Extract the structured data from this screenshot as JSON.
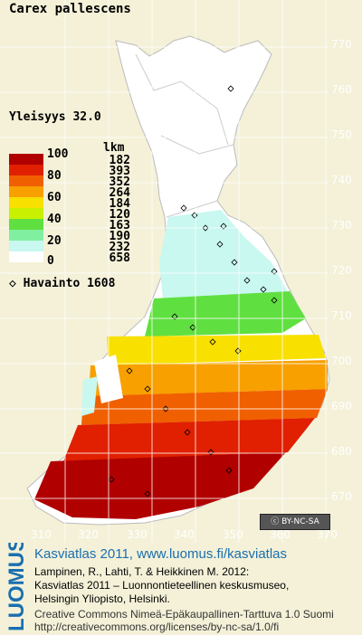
{
  "title": "Carex pallescens",
  "frequency_label": "Yleisyys  32.0",
  "legend": {
    "count_header": "lkm",
    "classes": [
      {
        "label": "100",
        "count": "182",
        "color": "#b00000"
      },
      {
        "label": "80",
        "count": "393",
        "color": "#e02000"
      },
      {
        "label": "",
        "count": "352",
        "color": "#f06000"
      },
      {
        "label": "60",
        "count": "264",
        "color": "#f8a000"
      },
      {
        "label": "",
        "count": "184",
        "color": "#f8e000"
      },
      {
        "label": "40",
        "count": "120",
        "color": "#c8f000"
      },
      {
        "label": "",
        "count": "163",
        "color": "#60e040"
      },
      {
        "label": "20",
        "count": "190",
        "color": "#80f0a0"
      },
      {
        "label": "",
        "count": "232",
        "color": "#c8f8f0"
      },
      {
        "label": "0",
        "count": "658",
        "color": "#ffffff"
      }
    ]
  },
  "observations_label": "Havainto 1608",
  "y_ticks": [
    "770",
    "760",
    "750",
    "740",
    "730",
    "720",
    "710",
    "700",
    "690",
    "680",
    "670"
  ],
  "x_ticks": [
    "310",
    "320",
    "330",
    "340",
    "350",
    "360",
    "370"
  ],
  "license_badge": "BY-NC-SA",
  "footer": {
    "brand": "LUOMUS",
    "line1": "Kasviatlas 2011, www.luomus.fi/kasviatlas",
    "line2": "Lampinen, R., Lahti, T. & Heikkinen M. 2012:",
    "line3": "Kasviatlas 2011 – Luonnontieteellinen keskusmuseo,",
    "line4": "Helsingin Yliopisto, Helsinki.",
    "line5": "Creative Commons Nimeä-Epäkaupallinen-Tarttuva 1.0 Suomi",
    "line6": "http://creativecommons.org/licenses/by-nc-sa/1.0/fi"
  },
  "colors": {
    "background": "#f4f1d8",
    "brand": "#1a6fb0"
  }
}
